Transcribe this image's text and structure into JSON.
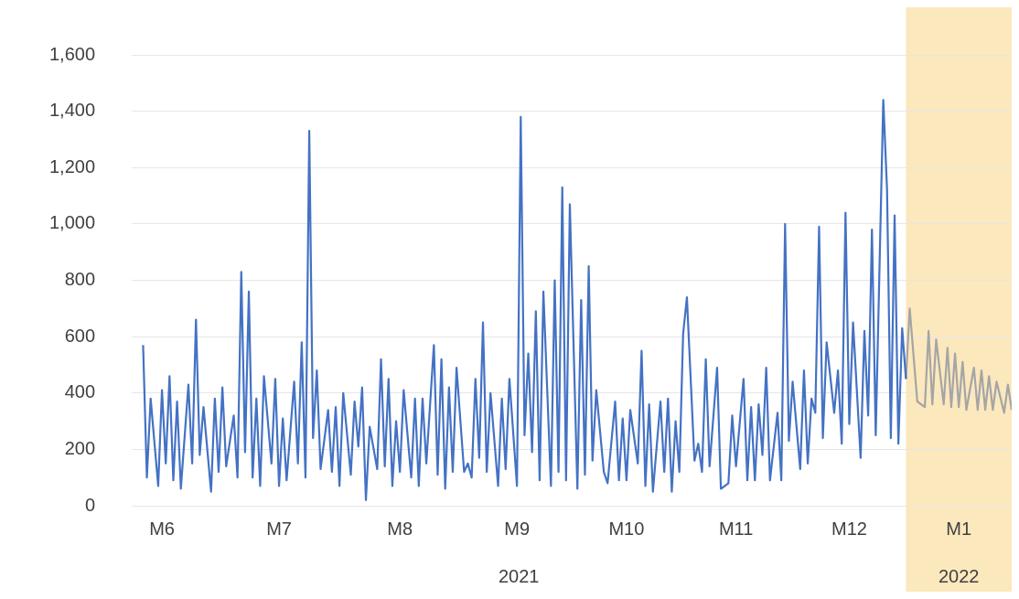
{
  "chart_data": {
    "type": "line",
    "xlim": [
      "2021-06-07",
      "2022-01-26"
    ],
    "ylim": [
      0,
      1600
    ],
    "xticks": [
      {
        "value": "2021-06-15",
        "label": "M6"
      },
      {
        "value": "2021-07-16",
        "label": "M7"
      },
      {
        "value": "2021-08-17",
        "label": "M8"
      },
      {
        "value": "2021-09-17",
        "label": "M9"
      },
      {
        "value": "2021-10-16",
        "label": "M10"
      },
      {
        "value": "2021-11-14",
        "label": "M11"
      },
      {
        "value": "2021-12-14",
        "label": "M12"
      },
      {
        "value": "2022-01-12",
        "label": "M1"
      }
    ],
    "yticks": [
      0,
      200,
      400,
      600,
      800,
      {
        "value": 1000,
        "label": "1,000"
      },
      {
        "value": 1200,
        "label": "1,200"
      },
      {
        "value": 1400,
        "label": "1,400"
      },
      {
        "value": 1600,
        "label": "1,600"
      }
    ],
    "grid": "y",
    "legend": false,
    "marker": "none",
    "line_style": "solid",
    "bands": [
      {
        "axis": "x",
        "from": "2021-12-29",
        "to": "2022-01-26",
        "color": "#fce8bd"
      }
    ],
    "annotations": [
      "2021",
      "2022"
    ],
    "series": [
      {
        "color": "#4472c4",
        "x": [
          "2021-06-10",
          "2021-06-11",
          "2021-06-12",
          "2021-06-14",
          "2021-06-15",
          "2021-06-16",
          "2021-06-17",
          "2021-06-18",
          "2021-06-19",
          "2021-06-20",
          "2021-06-22",
          "2021-06-23",
          "2021-06-24",
          "2021-06-25",
          "2021-06-26",
          "2021-06-28",
          "2021-06-29",
          "2021-06-30",
          "2021-07-01",
          "2021-07-02",
          "2021-07-04",
          "2021-07-05",
          "2021-07-06",
          "2021-07-07",
          "2021-07-08",
          "2021-07-09",
          "2021-07-10",
          "2021-07-11",
          "2021-07-12",
          "2021-07-14",
          "2021-07-15",
          "2021-07-16",
          "2021-07-17",
          "2021-07-18",
          "2021-07-20",
          "2021-07-21",
          "2021-07-22",
          "2021-07-23",
          "2021-07-24",
          "2021-07-25",
          "2021-07-26",
          "2021-07-27",
          "2021-07-29",
          "2021-07-30",
          "2021-07-31",
          "2021-08-01",
          "2021-08-02",
          "2021-08-04",
          "2021-08-05",
          "2021-08-06",
          "2021-08-07",
          "2021-08-08",
          "2021-08-09",
          "2021-08-11",
          "2021-08-12",
          "2021-08-13",
          "2021-08-14",
          "2021-08-15",
          "2021-08-16",
          "2021-08-17",
          "2021-08-18",
          "2021-08-20",
          "2021-08-21",
          "2021-08-22",
          "2021-08-23",
          "2021-08-24",
          "2021-08-26",
          "2021-08-27",
          "2021-08-28",
          "2021-08-29",
          "2021-08-30",
          "2021-08-31",
          "2021-09-01",
          "2021-09-03",
          "2021-09-04",
          "2021-09-05",
          "2021-09-06",
          "2021-09-07",
          "2021-09-08",
          "2021-09-09",
          "2021-09-10",
          "2021-09-12",
          "2021-09-13",
          "2021-09-14",
          "2021-09-15",
          "2021-09-17",
          "2021-09-18",
          "2021-09-19",
          "2021-09-20",
          "2021-09-21",
          "2021-09-22",
          "2021-09-23",
          "2021-09-24",
          "2021-09-26",
          "2021-09-27",
          "2021-09-28",
          "2021-09-29",
          "2021-09-30",
          "2021-10-01",
          "2021-10-03",
          "2021-10-04",
          "2021-10-05",
          "2021-10-06",
          "2021-10-07",
          "2021-10-08",
          "2021-10-10",
          "2021-10-11",
          "2021-10-13",
          "2021-10-14",
          "2021-10-15",
          "2021-10-16",
          "2021-10-17",
          "2021-10-19",
          "2021-10-20",
          "2021-10-21",
          "2021-10-22",
          "2021-10-23",
          "2021-10-25",
          "2021-10-26",
          "2021-10-27",
          "2021-10-28",
          "2021-10-29",
          "2021-10-30",
          "2021-10-31",
          "2021-11-01",
          "2021-11-03",
          "2021-11-04",
          "2021-11-05",
          "2021-11-06",
          "2021-11-07",
          "2021-11-09",
          "2021-11-10",
          "2021-11-12",
          "2021-11-13",
          "2021-11-14",
          "2021-11-16",
          "2021-11-17",
          "2021-11-18",
          "2021-11-19",
          "2021-11-20",
          "2021-11-21",
          "2021-11-22",
          "2021-11-23",
          "2021-11-25",
          "2021-11-26",
          "2021-11-27",
          "2021-11-28",
          "2021-11-29",
          "2021-12-01",
          "2021-12-02",
          "2021-12-03",
          "2021-12-04",
          "2021-12-05",
          "2021-12-06",
          "2021-12-07",
          "2021-12-08",
          "2021-12-10",
          "2021-12-11",
          "2021-12-12",
          "2021-12-13",
          "2021-12-14",
          "2021-12-15",
          "2021-12-17",
          "2021-12-18",
          "2021-12-19",
          "2021-12-20",
          "2021-12-21",
          "2021-12-23",
          "2021-12-24",
          "2021-12-25",
          "2021-12-26",
          "2021-12-27",
          "2021-12-28",
          "2021-12-29"
        ],
        "values": [
          570,
          100,
          380,
          70,
          410,
          150,
          460,
          90,
          370,
          60,
          430,
          150,
          660,
          180,
          350,
          50,
          380,
          120,
          420,
          140,
          320,
          100,
          830,
          190,
          760,
          100,
          380,
          70,
          460,
          150,
          450,
          70,
          310,
          90,
          440,
          150,
          580,
          100,
          1330,
          240,
          480,
          130,
          340,
          120,
          350,
          70,
          400,
          110,
          370,
          210,
          420,
          20,
          280,
          130,
          520,
          140,
          450,
          70,
          300,
          120,
          410,
          100,
          380,
          70,
          380,
          150,
          570,
          110,
          520,
          60,
          420,
          120,
          490,
          120,
          150,
          100,
          450,
          170,
          650,
          120,
          400,
          70,
          380,
          130,
          450,
          70,
          1380,
          250,
          540,
          190,
          690,
          90,
          760,
          70,
          800,
          120,
          1130,
          90,
          1070,
          60,
          730,
          110,
          850,
          160,
          410,
          120,
          80,
          370,
          90,
          310,
          90,
          340,
          150,
          550,
          70,
          360,
          50,
          370,
          120,
          380,
          50,
          300,
          120,
          610,
          740,
          160,
          220,
          120,
          520,
          140,
          490,
          60,
          80,
          320,
          140,
          450,
          90,
          350,
          90,
          360,
          180,
          490,
          90,
          330,
          90,
          1000,
          230,
          440,
          130,
          480,
          150,
          380,
          330,
          990,
          240,
          580,
          330,
          480,
          220,
          1040,
          290,
          650,
          170,
          620,
          320,
          980,
          250,
          1440,
          1120,
          240,
          1030,
          220,
          630,
          450
        ]
      },
      {
        "color": "#a5a5a5",
        "x": [
          "2021-12-29",
          "2021-12-30",
          "2022-01-01",
          "2022-01-03",
          "2022-01-04",
          "2022-01-05",
          "2022-01-06",
          "2022-01-08",
          "2022-01-09",
          "2022-01-10",
          "2022-01-11",
          "2022-01-12",
          "2022-01-13",
          "2022-01-14",
          "2022-01-16",
          "2022-01-17",
          "2022-01-18",
          "2022-01-19",
          "2022-01-20",
          "2022-01-21",
          "2022-01-22",
          "2022-01-24",
          "2022-01-25",
          "2022-01-26"
        ],
        "values": [
          450,
          700,
          370,
          350,
          620,
          360,
          590,
          360,
          560,
          350,
          540,
          350,
          510,
          340,
          490,
          340,
          480,
          340,
          460,
          340,
          440,
          330,
          430,
          340
        ]
      }
    ]
  }
}
